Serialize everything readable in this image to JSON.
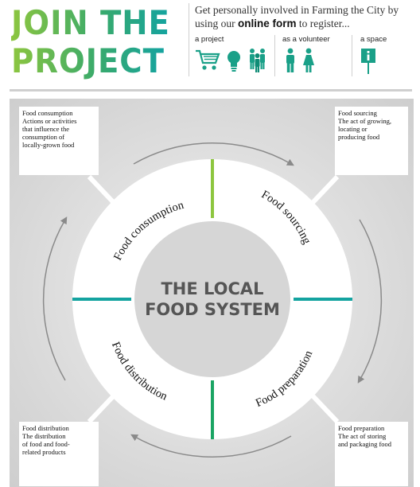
{
  "header": {
    "title_line1": "JOIN THE",
    "title_line2": "PROJECT",
    "intro_part1": "Get personally involved in Farming the City by using our ",
    "intro_bold": "online form",
    "intro_part2": " to register...",
    "options": [
      {
        "label": "a project",
        "icons": [
          "shopping-cart-icon",
          "lightbulb-icon",
          "group-of-people-icon"
        ]
      },
      {
        "label": "as a volunteer",
        "icons": [
          "man-icon",
          "woman-icon"
        ]
      },
      {
        "label": "a space",
        "icons": [
          "info-sign-icon"
        ]
      }
    ]
  },
  "diagram": {
    "center_line1": "THE LOCAL",
    "center_line2": "FOOD SYSTEM",
    "segments": [
      {
        "label": "Food consumption"
      },
      {
        "label": "Food sourcing"
      },
      {
        "label": "Food preparation"
      },
      {
        "label": "Food distribution"
      }
    ],
    "boxes": [
      {
        "title": "Food consumption",
        "lines": [
          "Actions or activities",
          "that influence the",
          "consumption of",
          "locally-grown food"
        ]
      },
      {
        "title": "Food sourcing",
        "lines": [
          "The act of growing,",
          "locating or",
          "producing food"
        ]
      },
      {
        "title": "Food distribution",
        "lines": [
          "The distribution",
          "of food and food-",
          "related products"
        ]
      },
      {
        "title": "Food preparation",
        "lines": [
          "The act of storing",
          "and packaging food"
        ]
      }
    ],
    "colors": {
      "divider_top": "#8dc63f",
      "divider_bottom": "#1aa463",
      "divider_sides": "#14a3a0",
      "center_text": "#555555",
      "ring": "#ffffff",
      "inner_circle": "#d6d6d6"
    }
  }
}
